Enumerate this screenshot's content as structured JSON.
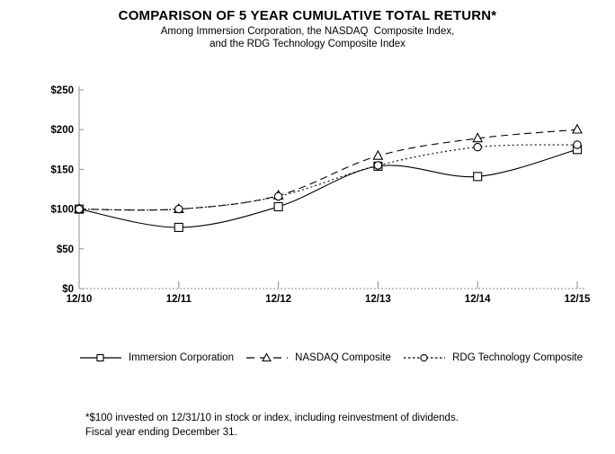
{
  "header": {
    "title": "COMPARISON OF 5 YEAR CUMULATIVE TOTAL RETURN*",
    "subtitle_line1": "Among Immersion Corporation, the NASDAQ  Composite Index,",
    "subtitle_line2": "and the RDG Technology Composite Index"
  },
  "chart_data": {
    "type": "line",
    "title": "COMPARISON OF 5 YEAR CUMULATIVE TOTAL RETURN*",
    "subtitle": [
      "Among Immersion Corporation, the NASDAQ  Composite Index,",
      "and the RDG Technology Composite Index"
    ],
    "categories": [
      "12/10",
      "12/11",
      "12/12",
      "12/13",
      "12/14",
      "12/15"
    ],
    "y_ticks": [
      "$0",
      "$50",
      "$100",
      "$150",
      "$200",
      "$250"
    ],
    "ylim": [
      0,
      250
    ],
    "grid": false,
    "legend_position": "bottom",
    "line_smoothing": true,
    "series": [
      {
        "name": "Immersion Corporation",
        "marker": "square",
        "line_style": "solid",
        "color": "#000000",
        "values": [
          100,
          77,
          103,
          154,
          141,
          175
        ]
      },
      {
        "name": "NASDAQ Composite",
        "marker": "triangle",
        "line_style": "dashed",
        "color": "#000000",
        "values": [
          100,
          100,
          117,
          167,
          189,
          200
        ]
      },
      {
        "name": "RDG Technology Composite",
        "marker": "circle",
        "line_style": "dotted",
        "color": "#000000",
        "values": [
          100,
          100,
          116,
          155,
          178,
          181
        ]
      }
    ]
  },
  "footnote": {
    "line1": "*$100 invested on 12/31/10 in stock or index, including reinvestment of dividends.",
    "line2": "Fiscal year ending December 31."
  },
  "colors": {
    "series_color": "#000000",
    "axis_color": "#8c8c8c",
    "tick_label_color": "#000000",
    "background": "#ffffff"
  }
}
